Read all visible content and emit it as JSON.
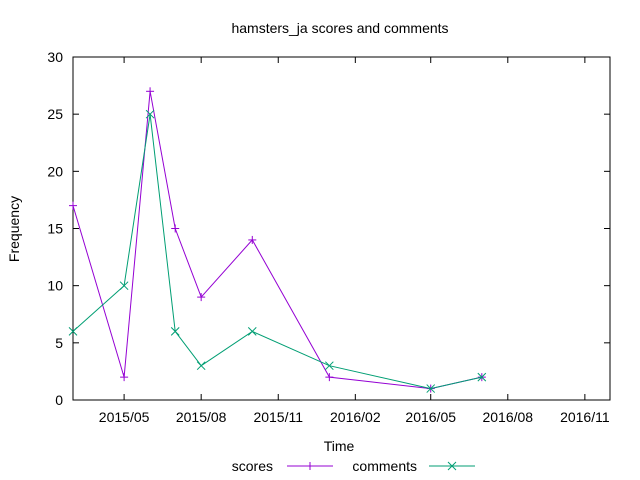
{
  "chart_data": {
    "type": "line",
    "title": "hamsters_ja scores and comments",
    "xlabel": "Time",
    "ylabel": "Frequency",
    "ylim": [
      0,
      30
    ],
    "xlim": [
      "2015-03-01",
      "2016-12-01"
    ],
    "grid": false,
    "legend_position": "bottom",
    "y_ticks": [
      0,
      5,
      10,
      15,
      20,
      25,
      30
    ],
    "x_ticks": [
      {
        "date": "2015-05-01",
        "label": "2015/05"
      },
      {
        "date": "2015-08-01",
        "label": "2015/08"
      },
      {
        "date": "2015-11-01",
        "label": "2015/11"
      },
      {
        "date": "2016-02-01",
        "label": "2016/02"
      },
      {
        "date": "2016-05-01",
        "label": "2016/05"
      },
      {
        "date": "2016-08-01",
        "label": "2016/08"
      },
      {
        "date": "2016-11-01",
        "label": "2016/11"
      }
    ],
    "series": [
      {
        "name": "scores",
        "color": "#9400d3",
        "marker": "plus",
        "points": [
          {
            "x": "2015-03-01",
            "y": 17
          },
          {
            "x": "2015-05-01",
            "y": 2
          },
          {
            "x": "2015-06-01",
            "y": 27
          },
          {
            "x": "2015-07-01",
            "y": 15
          },
          {
            "x": "2015-08-01",
            "y": 9
          },
          {
            "x": "2015-10-01",
            "y": 14
          },
          {
            "x": "2016-01-01",
            "y": 2
          },
          {
            "x": "2016-05-01",
            "y": 1
          },
          {
            "x": "2016-07-01",
            "y": 2
          }
        ]
      },
      {
        "name": "comments",
        "color": "#009e73",
        "marker": "cross",
        "points": [
          {
            "x": "2015-03-01",
            "y": 6
          },
          {
            "x": "2015-05-01",
            "y": 10
          },
          {
            "x": "2015-06-01",
            "y": 25
          },
          {
            "x": "2015-07-01",
            "y": 6
          },
          {
            "x": "2015-08-01",
            "y": 3
          },
          {
            "x": "2015-10-01",
            "y": 6
          },
          {
            "x": "2016-01-01",
            "y": 3
          },
          {
            "x": "2016-05-01",
            "y": 1
          },
          {
            "x": "2016-07-01",
            "y": 2
          }
        ]
      }
    ]
  }
}
